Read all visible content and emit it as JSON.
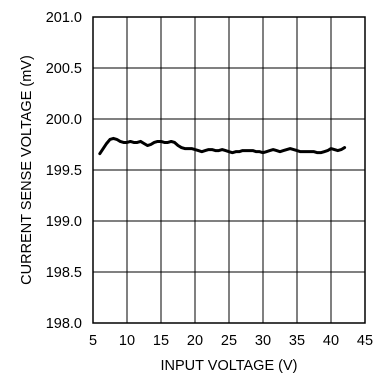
{
  "chart_data": {
    "type": "line",
    "title": "",
    "xlabel": "INPUT VOLTAGE (V)",
    "ylabel": "CURRENT SENSE VOLTAGE (mV)",
    "xlim": [
      5,
      45
    ],
    "ylim": [
      198.0,
      201.0
    ],
    "x_ticks": [
      5,
      10,
      15,
      20,
      25,
      30,
      35,
      40,
      45
    ],
    "x_tick_labels": [
      "5",
      "10",
      "15",
      "20",
      "25",
      "30",
      "35",
      "40",
      "45"
    ],
    "y_ticks": [
      198.0,
      198.5,
      199.0,
      199.5,
      200.0,
      200.5,
      201.0
    ],
    "y_tick_labels": [
      "198.0",
      "198.5",
      "199.0",
      "199.5",
      "200.0",
      "200.5",
      "201.0"
    ],
    "grid": true,
    "line_color": "#000000",
    "series": [
      {
        "x": [
          6.0,
          6.5,
          7.0,
          7.5,
          8.0,
          8.5,
          9.0,
          9.5,
          10.0,
          10.5,
          11.0,
          11.5,
          12.0,
          12.5,
          13.0,
          13.5,
          14.0,
          14.5,
          15.0,
          15.5,
          16.0,
          16.5,
          17.0,
          17.5,
          18.0,
          18.5,
          19.0,
          19.5,
          20.0,
          20.5,
          21.0,
          21.5,
          22.0,
          22.5,
          23.0,
          23.5,
          24.0,
          24.5,
          25.0,
          25.5,
          26.0,
          26.5,
          27.0,
          27.5,
          28.0,
          28.5,
          29.0,
          29.5,
          30.0,
          30.5,
          31.0,
          31.5,
          32.0,
          32.5,
          33.0,
          33.5,
          34.0,
          34.5,
          35.0,
          35.5,
          36.0,
          36.5,
          37.0,
          37.5,
          38.0,
          38.5,
          39.0,
          39.5,
          40.0,
          40.5,
          41.0,
          41.5,
          42.0
        ],
        "values": [
          199.66,
          199.71,
          199.76,
          199.8,
          199.81,
          199.8,
          199.78,
          199.77,
          199.77,
          199.78,
          199.77,
          199.77,
          199.78,
          199.76,
          199.74,
          199.75,
          199.77,
          199.78,
          199.78,
          199.77,
          199.77,
          199.78,
          199.77,
          199.74,
          199.72,
          199.71,
          199.71,
          199.71,
          199.7,
          199.69,
          199.68,
          199.69,
          199.7,
          199.7,
          199.69,
          199.69,
          199.7,
          199.69,
          199.68,
          199.67,
          199.68,
          199.68,
          199.69,
          199.69,
          199.69,
          199.69,
          199.68,
          199.68,
          199.67,
          199.68,
          199.69,
          199.7,
          199.69,
          199.68,
          199.69,
          199.7,
          199.71,
          199.7,
          199.69,
          199.68,
          199.68,
          199.68,
          199.68,
          199.68,
          199.67,
          199.67,
          199.68,
          199.69,
          199.71,
          199.7,
          199.69,
          199.7,
          199.72
        ]
      }
    ]
  }
}
